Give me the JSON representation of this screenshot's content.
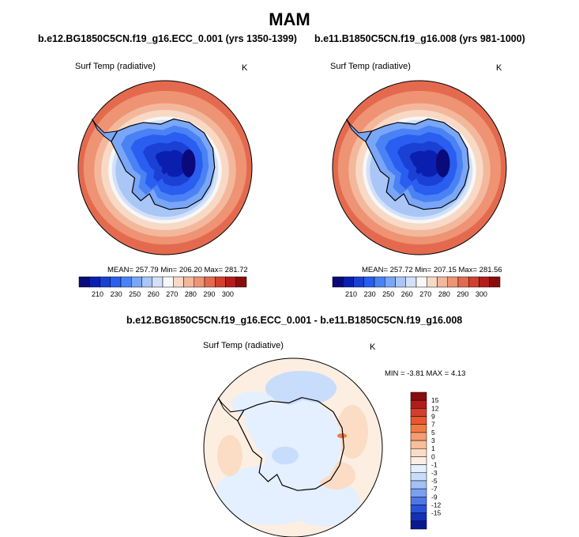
{
  "page_title": "MAM",
  "chart_data": [
    {
      "type": "heatmap",
      "projection": "south-polar-stereographic",
      "title": "b.e12.BG1850C5CN.f19_g16.ECC_0.001 (yrs 1350-1399)",
      "variable_label": "Surf Temp (radiative)",
      "units": "K",
      "stats_text": "MEAN= 257.79  Min= 206.20  Max= 281.72",
      "mean": 257.79,
      "min": 206.2,
      "max": 281.72,
      "colorbar": {
        "orientation": "horizontal",
        "tick_labels": [
          "210",
          "230",
          "250",
          "260",
          "270",
          "280",
          "290",
          "300"
        ],
        "colors": [
          "#0a0a7a",
          "#0a1fb0",
          "#1a40d4",
          "#2a5ef0",
          "#4a82f5",
          "#7aa6f7",
          "#a9c6f7",
          "#d2e1f8",
          "#f7f7f7",
          "#f8d9c6",
          "#f3b89c",
          "#ee9373",
          "#e46a4f",
          "#d23f2f",
          "#b41c1c",
          "#8a0d0d"
        ]
      }
    },
    {
      "type": "heatmap",
      "projection": "south-polar-stereographic",
      "title": "b.e11.B1850C5CN.f19_g16.008 (yrs 981-1000)",
      "variable_label": "Surf Temp (radiative)",
      "units": "K",
      "stats_text": "MEAN= 257.72  Min= 207.15  Max= 281.56",
      "mean": 257.72,
      "min": 207.15,
      "max": 281.56,
      "colorbar": {
        "orientation": "horizontal",
        "tick_labels": [
          "210",
          "230",
          "250",
          "260",
          "270",
          "280",
          "290",
          "300"
        ],
        "colors": [
          "#0a0a7a",
          "#0a1fb0",
          "#1a40d4",
          "#2a5ef0",
          "#4a82f5",
          "#7aa6f7",
          "#a9c6f7",
          "#d2e1f8",
          "#f7f7f7",
          "#f8d9c6",
          "#f3b89c",
          "#ee9373",
          "#e46a4f",
          "#d23f2f",
          "#b41c1c",
          "#8a0d0d"
        ]
      }
    },
    {
      "type": "heatmap",
      "projection": "south-polar-stereographic",
      "title": "b.e12.BG1850C5CN.f19_g16.ECC_0.001 - b.e11.B1850C5CN.f19_g16.008",
      "variable_label": "Surf Temp (radiative)",
      "units": "K",
      "stats_text": "MIN = -3.81 MAX =  4.13",
      "min": -3.81,
      "max": 4.13,
      "colorbar": {
        "orientation": "vertical",
        "tick_labels": [
          "15",
          "12",
          "9",
          "7",
          "5",
          "3",
          "1",
          "0",
          "-1",
          "-3",
          "-5",
          "-7",
          "-9",
          "-12",
          "-15"
        ],
        "colors": [
          "#8a0d0d",
          "#b41c1c",
          "#d23f2f",
          "#e8582f",
          "#f07a45",
          "#f59d70",
          "#f8bf9a",
          "#fbdcc4",
          "#fdeee2",
          "#e4efff",
          "#c8dcfb",
          "#a2c1f6",
          "#7aa0f0",
          "#4f78e6",
          "#2a52d8",
          "#1230b8",
          "#0a1890"
        ]
      }
    }
  ]
}
